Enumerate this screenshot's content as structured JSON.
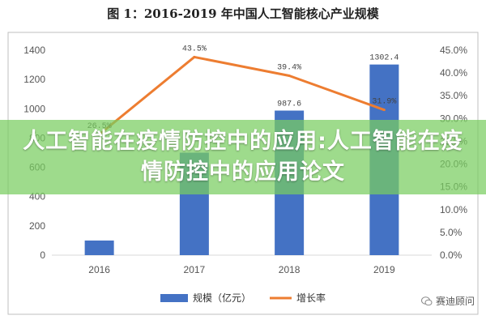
{
  "chart_data": {
    "type": "bar",
    "title": "图 1：2016-2019 年中国人工智能核心产业规模",
    "categories": [
      "2016",
      "2017",
      "2018",
      "2019"
    ],
    "series": [
      {
        "name": "规模（亿元）",
        "type": "bar",
        "axis": "left",
        "color": "#4472C4",
        "values": [
          100,
          700,
          987.6,
          1302.4
        ],
        "labels": [
          "",
          "",
          "987.6",
          "1302.4"
        ]
      },
      {
        "name": "增长率",
        "type": "line",
        "axis": "right",
        "color": "#ED7D31",
        "values": [
          26.5,
          43.5,
          39.4,
          31.9
        ],
        "labels": [
          "26.5%",
          "43.5%",
          "39.4%",
          "31.9%"
        ]
      }
    ],
    "y_left": {
      "ylim": [
        0,
        1400
      ],
      "ticks": [
        "0",
        "200",
        "400",
        "600",
        "800",
        "1000",
        "1200",
        "1400"
      ]
    },
    "y_right": {
      "ylim": [
        0,
        45
      ],
      "ticks": [
        "0.0%",
        "5.0%",
        "10.0%",
        "15.0%",
        "20.0%",
        "25.0%",
        "30.0%",
        "35.0%",
        "40.0%",
        "45.0%"
      ]
    },
    "legend": "bottom-center",
    "grid": false
  },
  "overlay": {
    "banner_text": "人工智能在疫情防控中的应用:人工智能在疫情防控中的应用论文",
    "banner_color": "#78CD5F",
    "watermark_text": "赛迪顾问",
    "watermark_icon": "wechat-icon"
  }
}
